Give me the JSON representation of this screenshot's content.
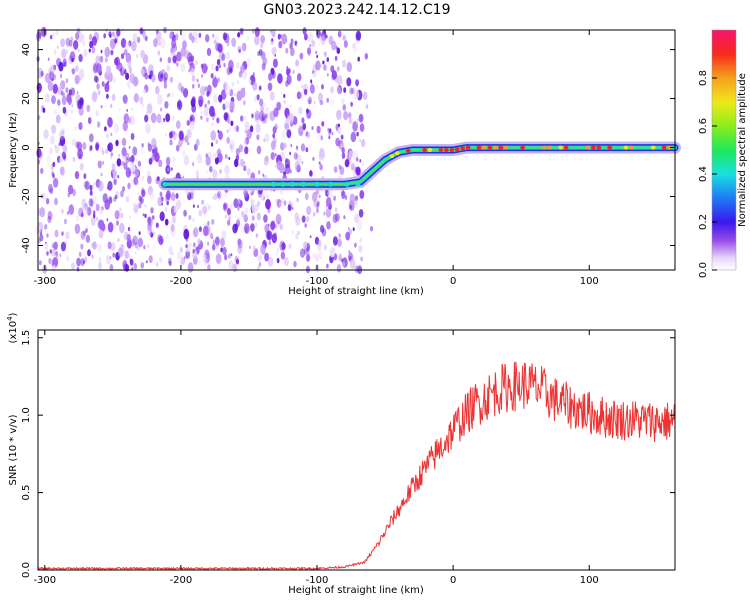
{
  "figure": {
    "title": "GN03.2023.242.14.12.C19"
  },
  "chart_data": [
    {
      "type": "heatmap",
      "xlabel": "Height of straight line (km)",
      "ylabel": "Frequency (Hz)",
      "xlim": [
        -305,
        163
      ],
      "ylim": [
        -50,
        48
      ],
      "xticks": [
        -300,
        -200,
        -100,
        0,
        100
      ],
      "yticks": [
        -40,
        -20,
        0,
        20,
        40
      ],
      "noise_region_x": [
        -305,
        -65
      ],
      "signal_trace": {
        "x": [
          -212,
          -135,
          -100,
          -80,
          -68,
          -60,
          -50,
          -40,
          -30,
          -20,
          -10,
          0,
          10,
          30,
          50,
          70,
          90,
          110,
          130,
          150,
          163
        ],
        "frequency_hz": [
          -15,
          -15,
          -15,
          -15,
          -14,
          -10,
          -5,
          -2,
          -1,
          -1,
          -1,
          -1,
          0,
          0,
          0,
          0,
          0,
          0,
          0,
          0,
          0
        ]
      },
      "colorbar": {
        "label": "Normalized spectral amplitude",
        "range": [
          0.0,
          1.0
        ],
        "ticks": [
          0.0,
          0.2,
          0.4,
          0.6,
          0.8
        ]
      },
      "grid": false
    },
    {
      "type": "line",
      "xlabel": "Height of straight line (km)",
      "ylabel": "SNR (10 * v/v)",
      "yscale_label": "(x10",
      "yscale_exp": "4",
      "yscale_close": ")",
      "xlim": [
        -305,
        163
      ],
      "ylim": [
        0,
        1.55
      ],
      "xticks": [
        -300,
        -200,
        -100,
        0,
        100
      ],
      "yticks": [
        0.0,
        0.5,
        1.0,
        1.5
      ],
      "ytick_labels": [
        "0.0",
        "0.5",
        "1.0",
        "1.5"
      ],
      "color": "#ee3333",
      "x": [
        -305,
        -250,
        -200,
        -150,
        -100,
        -80,
        -65,
        -55,
        -45,
        -35,
        -25,
        -15,
        -5,
        5,
        15,
        25,
        35,
        45,
        55,
        65,
        75,
        85,
        95,
        105,
        115,
        125,
        135,
        145,
        155,
        163
      ],
      "y": [
        0.01,
        0.01,
        0.01,
        0.01,
        0.01,
        0.02,
        0.05,
        0.17,
        0.32,
        0.46,
        0.6,
        0.72,
        0.84,
        0.96,
        1.06,
        1.12,
        1.17,
        1.19,
        1.2,
        1.16,
        1.1,
        1.06,
        1.03,
        1.0,
        0.98,
        0.97,
        0.97,
        0.96,
        0.96,
        0.96
      ],
      "grid": false
    }
  ]
}
